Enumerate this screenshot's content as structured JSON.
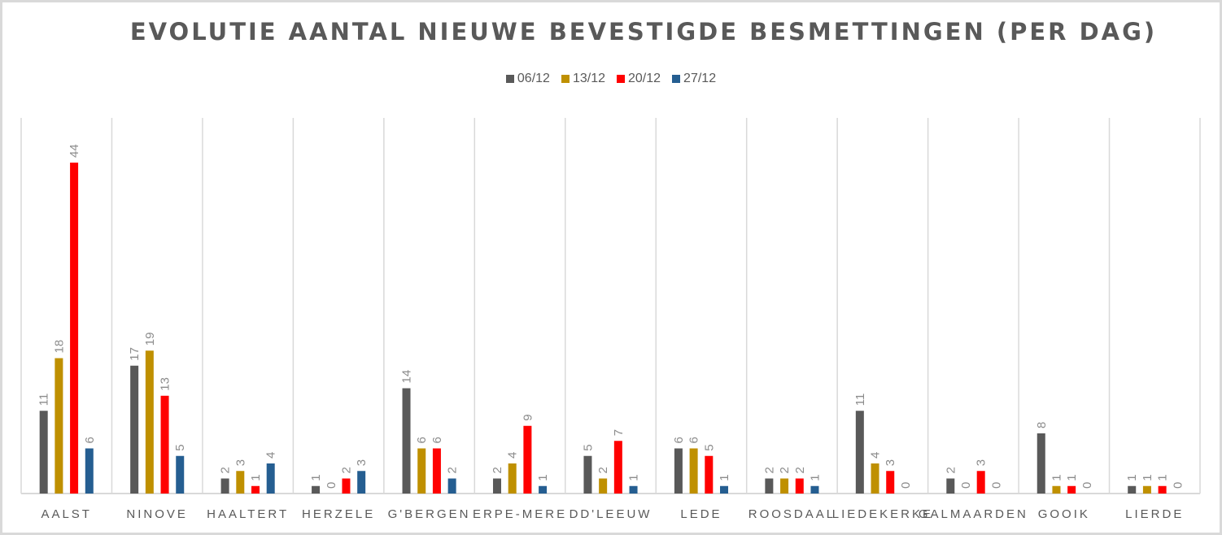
{
  "chart_data": {
    "type": "bar",
    "title": "EVOLUTIE AANTAL NIEUWE BEVESTIGDE BESMETTINGEN (PER DAG)",
    "xlabel": "",
    "ylabel": "",
    "ylim": [
      0,
      50
    ],
    "grid": "vertical category separators",
    "legend_position": "top",
    "categories": [
      "AALST",
      "NINOVE",
      "HAALTERT",
      "HERZELE",
      "G'BERGEN",
      "ERPE-MERE",
      "DD'LEEUW",
      "LEDE",
      "ROOSDAAL",
      "LIEDEKERKE",
      "GALMAARDEN",
      "GOOIK",
      "LIERDE"
    ],
    "series": [
      {
        "name": "06/12",
        "color": "#595959",
        "values": [
          11,
          17,
          2,
          1,
          14,
          2,
          5,
          6,
          2,
          11,
          2,
          8,
          1
        ]
      },
      {
        "name": "13/12",
        "color": "#bf9000",
        "values": [
          18,
          19,
          3,
          0,
          6,
          4,
          2,
          6,
          2,
          4,
          0,
          1,
          1
        ]
      },
      {
        "name": "20/12",
        "color": "#ff0000",
        "values": [
          44,
          13,
          1,
          2,
          6,
          9,
          7,
          5,
          2,
          3,
          3,
          1,
          1
        ]
      },
      {
        "name": "27/12",
        "color": "#255e91",
        "values": [
          6,
          5,
          4,
          3,
          2,
          1,
          1,
          1,
          1,
          0,
          0,
          0,
          0
        ]
      }
    ]
  }
}
